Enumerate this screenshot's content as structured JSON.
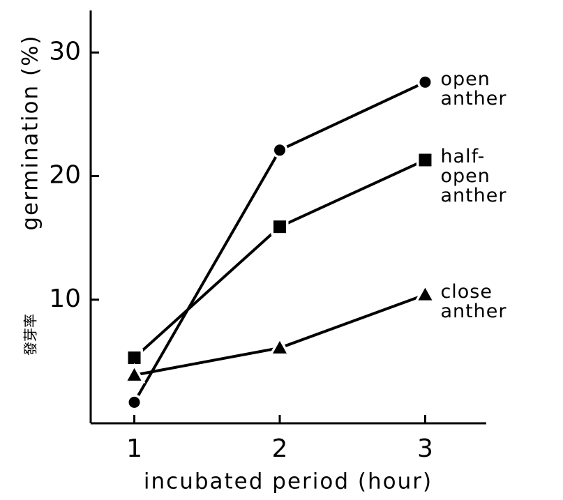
{
  "chart_data": {
    "type": "line",
    "x_label": "incubated period (hour)",
    "y_label": "germination (%)",
    "y_label_alt": "發芽率",
    "x": [
      1,
      2,
      3
    ],
    "xlim": [
      0.7,
      3.42
    ],
    "ylim": [
      0,
      33.4
    ],
    "xticks": [
      1,
      2,
      3
    ],
    "yticks": [
      10,
      20,
      30
    ],
    "series": [
      {
        "name": "open anther",
        "color": "#000000",
        "marker": "circle",
        "values": [
          1.7,
          22.1,
          27.6
        ]
      },
      {
        "name": "half-open anther",
        "color": "#000000",
        "marker": "square",
        "values": [
          5.3,
          15.9,
          21.3
        ]
      },
      {
        "name": "close anther",
        "color": "#000000",
        "marker": "triangle",
        "values": [
          3.9,
          6.1,
          10.4
        ]
      }
    ]
  }
}
